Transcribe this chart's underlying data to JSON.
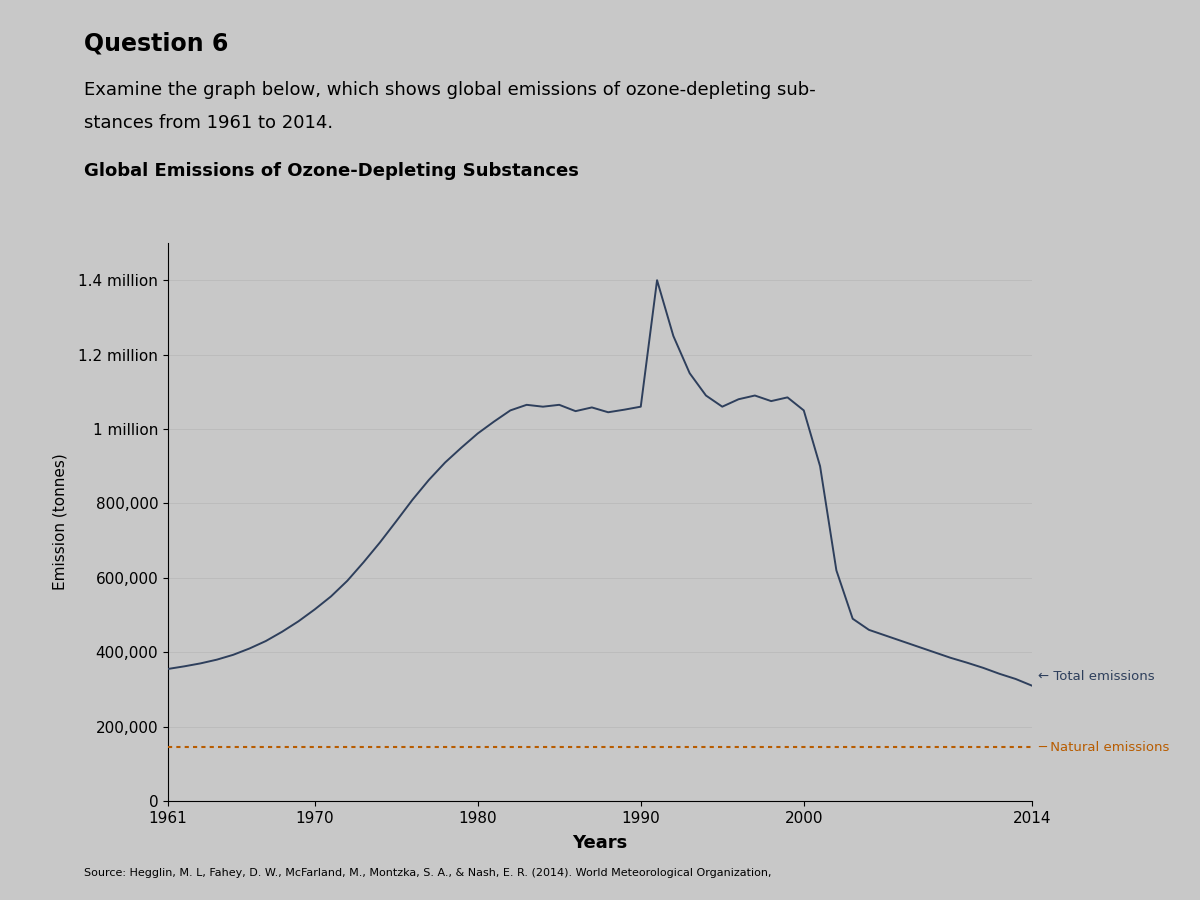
{
  "title": "Global Emissions of Ozone-Depleting Substances",
  "question_header": "Question 6",
  "question_text_line1": "Examine the graph below, which shows global emissions of ozone-depleting sub-",
  "question_text_line2": "stances from 1961 to 2014.",
  "chart_title_bold": "Global Emissions of Ozone-Depleting Substances",
  "xlabel": "Years",
  "ylabel": "Emission (tonnes)",
  "source": "Source: Hegglin, M. L, Fahey, D. W., McFarland, M., Montzka, S. A., & Nash, E. R. (2014). World Meteorological Organization,",
  "ytick_labels": [
    "0",
    "200,000",
    "400,000",
    "600,000",
    "800,000",
    "1 million",
    "1.2 million",
    "1.4 million"
  ],
  "ytick_values": [
    0,
    200000,
    400000,
    600000,
    800000,
    1000000,
    1200000,
    1400000
  ],
  "xtick_labels": [
    "1961",
    "1970",
    "1980",
    "1990",
    "2000",
    "2014"
  ],
  "xtick_values": [
    1961,
    1970,
    1980,
    1990,
    2000,
    2014
  ],
  "ylim": [
    0,
    1500000
  ],
  "xlim": [
    1961,
    2014
  ],
  "total_color": "#2e3f5c",
  "natural_color": "#b85c00",
  "bg_color": "#c8c8c8",
  "natural_value": 145000,
  "total_years": [
    1961,
    1962,
    1963,
    1964,
    1965,
    1966,
    1967,
    1968,
    1969,
    1970,
    1971,
    1972,
    1973,
    1974,
    1975,
    1976,
    1977,
    1978,
    1979,
    1980,
    1981,
    1982,
    1983,
    1984,
    1985,
    1986,
    1987,
    1988,
    1989,
    1990,
    1991,
    1992,
    1993,
    1994,
    1995,
    1996,
    1997,
    1998,
    1999,
    2000,
    2001,
    2002,
    2003,
    2004,
    2005,
    2006,
    2007,
    2008,
    2009,
    2010,
    2011,
    2012,
    2013,
    2014
  ],
  "total_values": [
    355000,
    362000,
    370000,
    380000,
    393000,
    410000,
    430000,
    455000,
    483000,
    515000,
    550000,
    592000,
    642000,
    695000,
    752000,
    810000,
    863000,
    910000,
    950000,
    988000,
    1020000,
    1050000,
    1065000,
    1060000,
    1065000,
    1048000,
    1058000,
    1045000,
    1052000,
    1060000,
    1400000,
    1250000,
    1150000,
    1090000,
    1060000,
    1080000,
    1090000,
    1075000,
    1085000,
    1050000,
    900000,
    620000,
    490000,
    460000,
    445000,
    430000,
    415000,
    400000,
    385000,
    372000,
    358000,
    342000,
    328000,
    310000
  ]
}
